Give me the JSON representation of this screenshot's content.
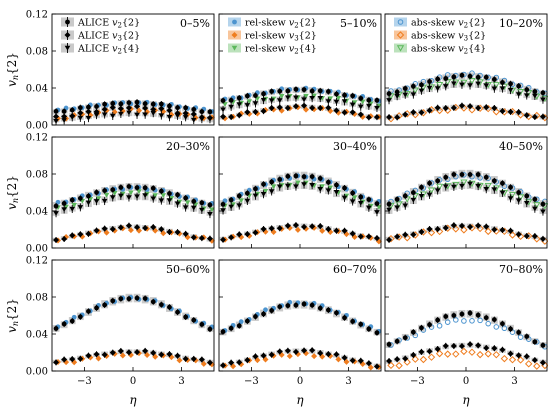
{
  "figure": {
    "ylabel": "v_n{2}",
    "xlabel": "η",
    "ytick_labels": [
      "0.00",
      "0.04",
      "0.08",
      "0.12"
    ],
    "xtick_labels": [
      "−3",
      "0",
      "3"
    ]
  },
  "colors": {
    "alice": "#000000",
    "alice_band": "#b8b8b8",
    "rel_v2": "#4c94cf",
    "rel_v3": "#ef7d1f",
    "rel_v4": "#5cb85c",
    "rel_v2_band": "#9cc5e6",
    "rel_v3_band": "#f6b27a",
    "rel_v4_band": "#a6d8a6"
  },
  "legends": {
    "panel0": [
      "ALICE v2{2}",
      "ALICE v3{2}",
      "ALICE v2{4}"
    ],
    "panel1": [
      "rel-skew v2{2}",
      "rel-skew v3{2}",
      "rel-skew v2{4}"
    ],
    "panel2": [
      "abs-skew v2{2}",
      "abs-skew v3{2}",
      "abs-skew v2{4}"
    ]
  },
  "chart_data": {
    "type": "scatter",
    "x": [
      -4.75,
      -4.25,
      -3.75,
      -3.25,
      -2.75,
      -2.25,
      -1.75,
      -1.25,
      -0.75,
      -0.25,
      0.25,
      0.75,
      1.25,
      1.75,
      2.25,
      2.75,
      3.25,
      3.75,
      4.25,
      4.75
    ],
    "xlim": [
      -5,
      5
    ],
    "ylim": [
      0,
      0.12
    ],
    "panels": [
      {
        "label": "0–5%",
        "v2_2": {
          "edge": 0.014,
          "peak": 0.024
        },
        "v3_2": {
          "edge": 0.008,
          "peak": 0.019
        },
        "v2_4": {
          "edge": 0.005,
          "peak": 0.012
        },
        "model_v2": {
          "edge": 0.016,
          "peak": 0.024
        },
        "model_v3": {
          "edge": 0.007,
          "peak": 0.016
        },
        "model_v4": {
          "edge": 0.0,
          "peak": 0.0
        }
      },
      {
        "label": "5–10%",
        "v2_2": {
          "edge": 0.026,
          "peak": 0.038
        },
        "v3_2": {
          "edge": 0.008,
          "peak": 0.02
        },
        "v2_4": {
          "edge": 0.018,
          "peak": 0.029
        },
        "model_v2": {
          "edge": 0.027,
          "peak": 0.039
        },
        "model_v3": {
          "edge": 0.008,
          "peak": 0.018
        },
        "model_v4": {
          "edge": 0.022,
          "peak": 0.031
        }
      },
      {
        "label": "10–20%",
        "v2_2": {
          "edge": 0.034,
          "peak": 0.053
        },
        "v3_2": {
          "edge": 0.008,
          "peak": 0.02
        },
        "v2_4": {
          "edge": 0.028,
          "peak": 0.044
        },
        "model_v2": {
          "edge": 0.035,
          "peak": 0.055
        },
        "model_v3": {
          "edge": 0.008,
          "peak": 0.018
        },
        "model_v4": {
          "edge": 0.03,
          "peak": 0.047
        }
      },
      {
        "label": "20–30%",
        "v2_2": {
          "edge": 0.046,
          "peak": 0.066
        },
        "v3_2": {
          "edge": 0.009,
          "peak": 0.023
        },
        "v2_4": {
          "edge": 0.038,
          "peak": 0.056
        },
        "model_v2": {
          "edge": 0.048,
          "peak": 0.065
        },
        "model_v3": {
          "edge": 0.009,
          "peak": 0.02
        },
        "model_v4": {
          "edge": 0.042,
          "peak": 0.06
        }
      },
      {
        "label": "30–40%",
        "v2_2": {
          "edge": 0.048,
          "peak": 0.078
        },
        "v3_2": {
          "edge": 0.01,
          "peak": 0.024
        },
        "v2_4": {
          "edge": 0.04,
          "peak": 0.068
        },
        "model_v2": {
          "edge": 0.05,
          "peak": 0.077
        },
        "model_v3": {
          "edge": 0.009,
          "peak": 0.021
        },
        "model_v4": {
          "edge": 0.044,
          "peak": 0.07
        }
      },
      {
        "label": "40–50%",
        "v2_2": {
          "edge": 0.048,
          "peak": 0.08
        },
        "v3_2": {
          "edge": 0.01,
          "peak": 0.024
        },
        "v2_4": {
          "edge": 0.04,
          "peak": 0.068
        },
        "model_v2": {
          "edge": 0.05,
          "peak": 0.078
        },
        "model_v3": {
          "edge": 0.009,
          "peak": 0.021
        },
        "model_v4": {
          "edge": 0.045,
          "peak": 0.07
        }
      },
      {
        "label": "50–60%",
        "v2_2": {
          "edge": 0.046,
          "peak": 0.079
        },
        "v3_2": {
          "edge": 0.01,
          "peak": 0.021
        },
        "v2_4": {
          "edge": 0.0,
          "peak": 0.0
        },
        "model_v2": {
          "edge": 0.048,
          "peak": 0.079
        },
        "model_v3": {
          "edge": 0.008,
          "peak": 0.018
        },
        "model_v4": {
          "edge": 0.0,
          "peak": 0.0
        }
      },
      {
        "label": "60–70%",
        "v2_2": {
          "edge": 0.042,
          "peak": 0.072
        },
        "v3_2": {
          "edge": 0.006,
          "peak": 0.022
        },
        "v2_4": {
          "edge": 0.0,
          "peak": 0.0
        },
        "model_v2": {
          "edge": 0.044,
          "peak": 0.074
        },
        "model_v3": {
          "edge": 0.004,
          "peak": 0.018
        },
        "model_v4": {
          "edge": 0.0,
          "peak": 0.0
        }
      },
      {
        "label": "70–80%",
        "v2_2": {
          "edge": 0.028,
          "peak": 0.062
        },
        "v3_2": {
          "edge": 0.01,
          "peak": 0.028
        },
        "v2_4": {
          "edge": 0.0,
          "peak": 0.0
        },
        "model_v2": {
          "edge": 0.028,
          "peak": 0.055
        },
        "model_v3": {
          "edge": 0.005,
          "peak": 0.02
        },
        "model_v4": {
          "edge": 0.0,
          "peak": 0.0
        }
      }
    ]
  }
}
